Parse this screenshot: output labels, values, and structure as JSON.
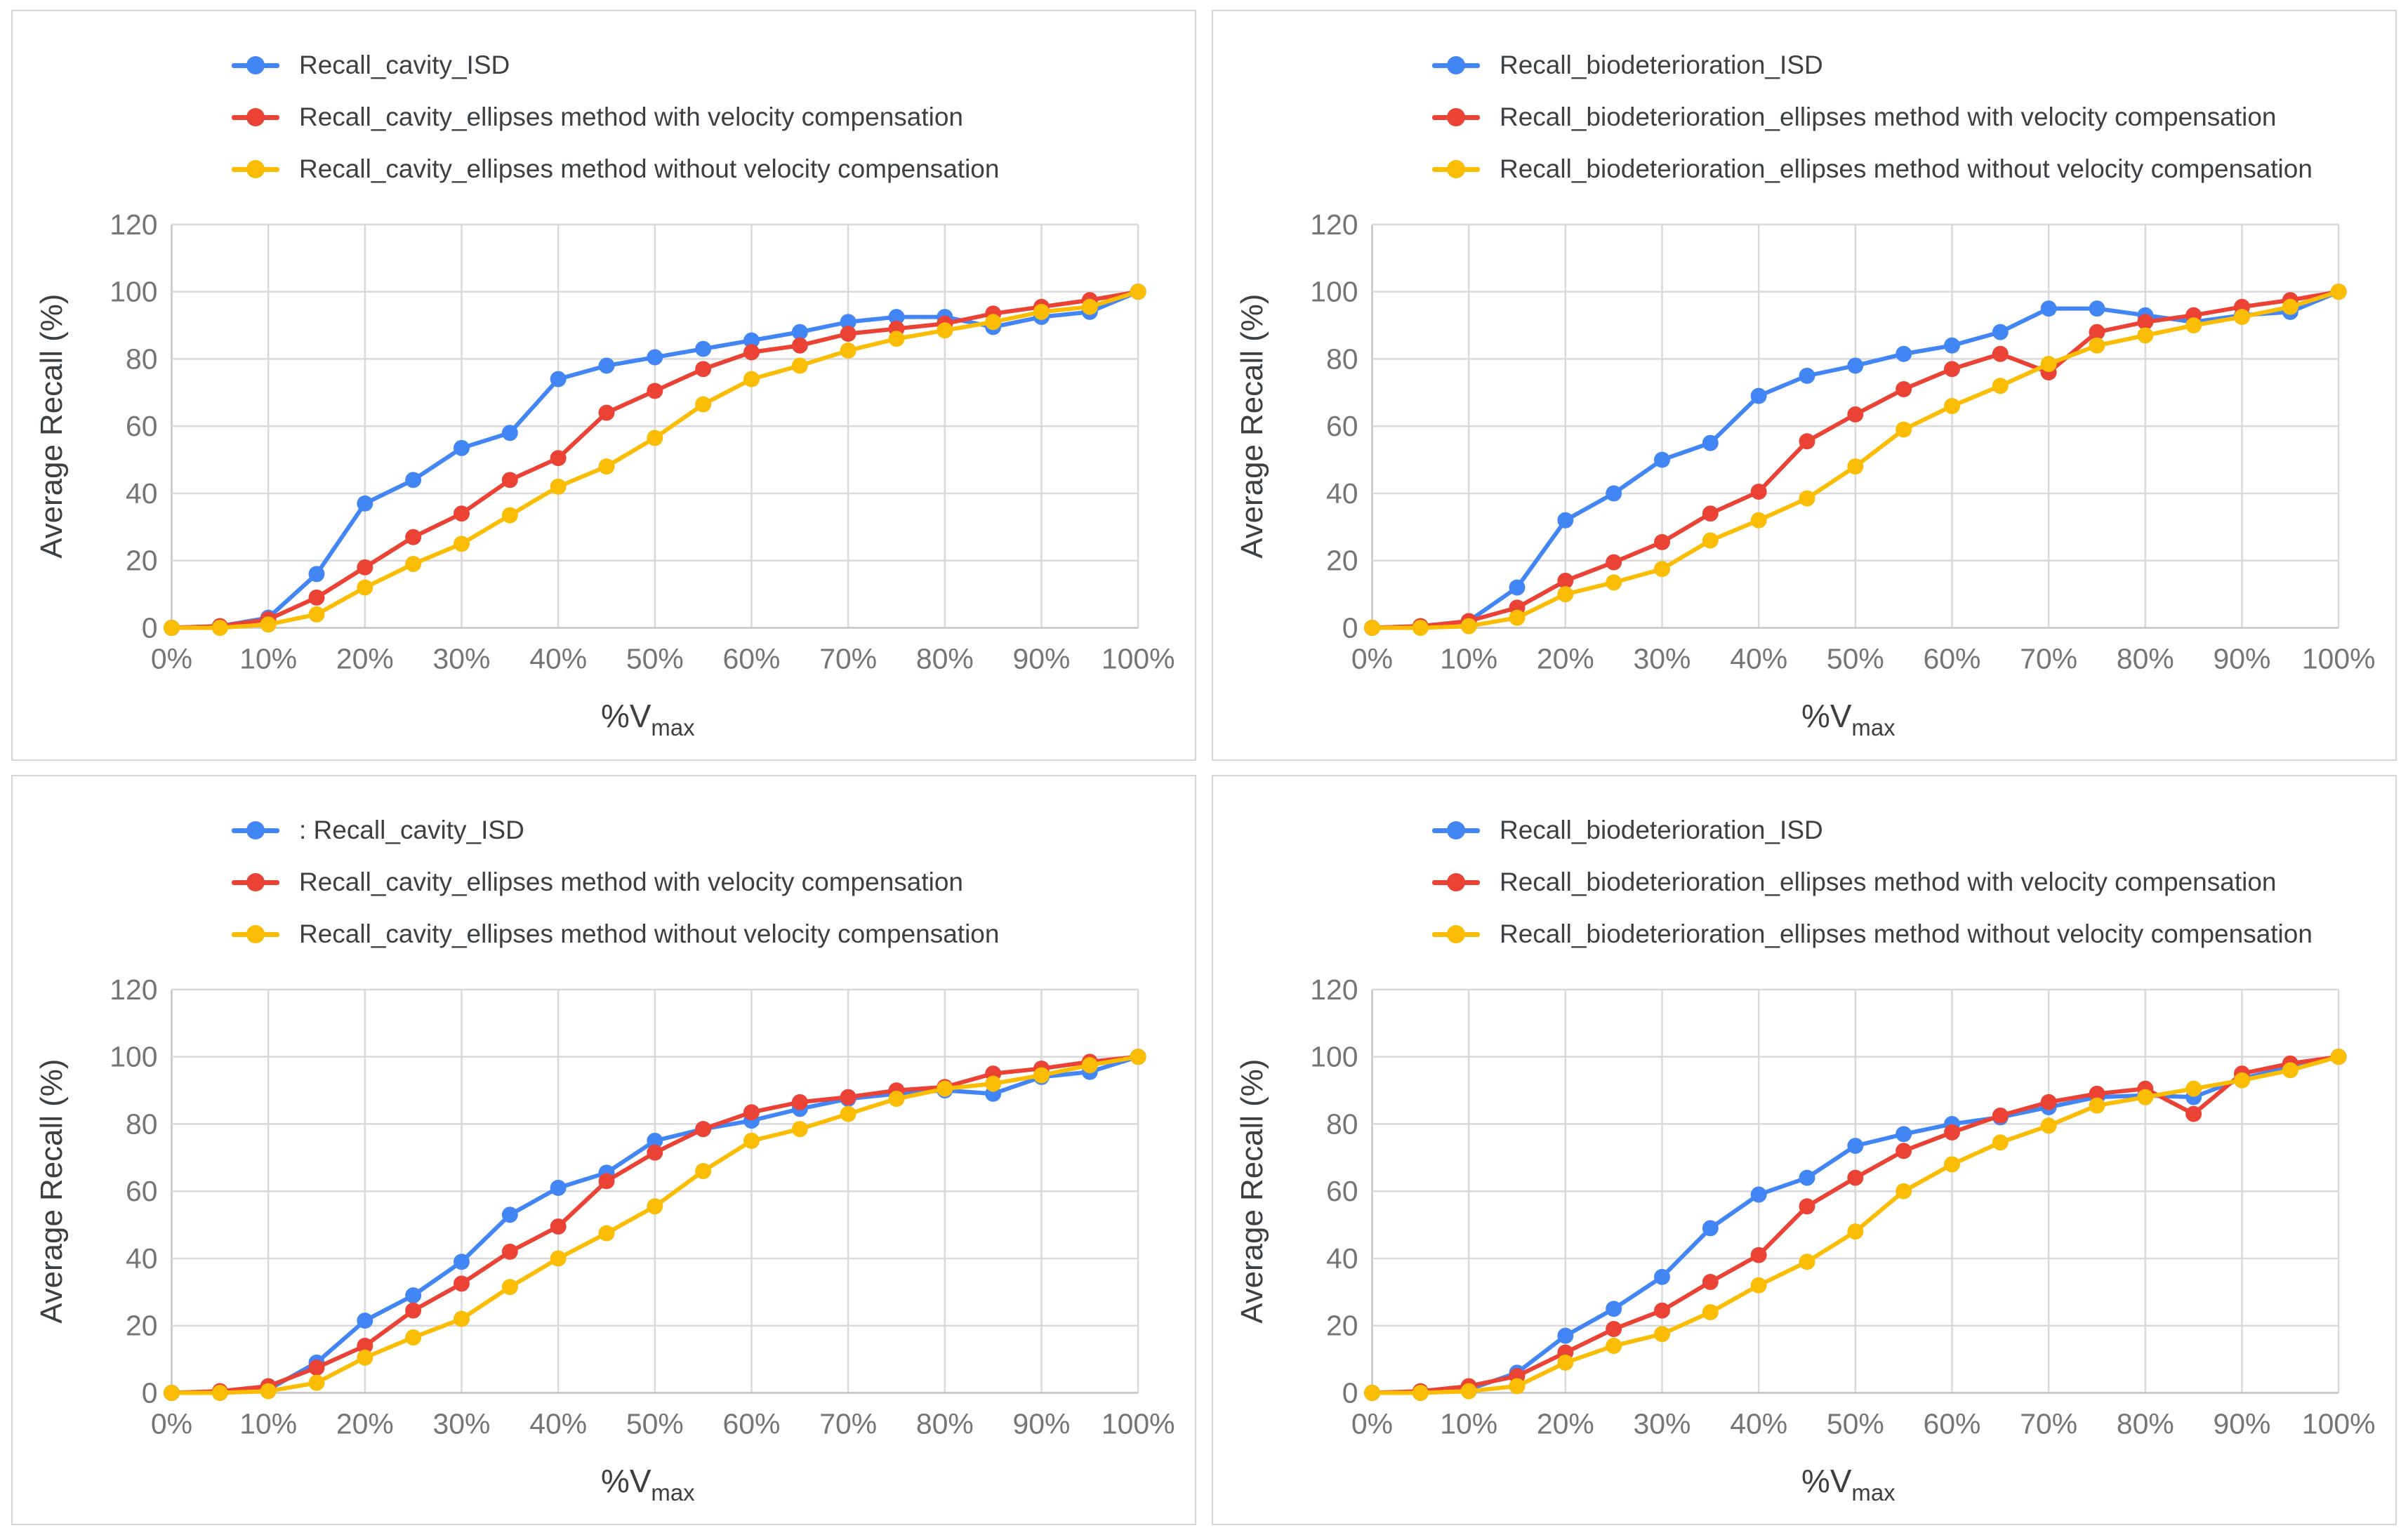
{
  "page": {
    "background": "#ffffff",
    "panel_border": "#d6d6d6"
  },
  "chart_data": [
    {
      "type": "line",
      "panel": "top-left",
      "ylabel": "Average Recall (%)",
      "xlabel": "%V",
      "xlabel_sub": "max",
      "ylim": [
        0,
        120
      ],
      "yticks": [
        0,
        20,
        40,
        60,
        80,
        100,
        120
      ],
      "x_tick_labels": [
        "0%",
        "10%",
        "20%",
        "30%",
        "40%",
        "50%",
        "60%",
        "70%",
        "80%",
        "90%",
        "100%"
      ],
      "x_categories": [
        "0%",
        "5%",
        "10%",
        "15%",
        "20%",
        "25%",
        "30%",
        "35%",
        "40%",
        "45%",
        "50%",
        "55%",
        "60%",
        "65%",
        "70%",
        "75%",
        "80%",
        "85%",
        "90%",
        "95%",
        "100%"
      ],
      "grid": true,
      "legend_position": "top-left",
      "series": [
        {
          "name": "Recall_cavity_ISD",
          "color": "#4285F4",
          "values": [
            0,
            0.5,
            3,
            16,
            37,
            44,
            53.5,
            58,
            74,
            78,
            80.5,
            83,
            85.5,
            88,
            91,
            92.5,
            92.5,
            89.5,
            92.5,
            94,
            100
          ]
        },
        {
          "name": "Recall_cavity_ellipses method with velocity compensation",
          "color": "#EA4335",
          "values": [
            0,
            0.5,
            2.5,
            9,
            18,
            27,
            34,
            44,
            50.5,
            64,
            70.5,
            77,
            82,
            84,
            87.5,
            89,
            90.5,
            93.5,
            95.5,
            97.5,
            100
          ]
        },
        {
          "name": "Recall_cavity_ellipses method without velocity compensation",
          "color": "#FBBC04",
          "values": [
            0,
            0,
            1,
            4,
            12,
            19,
            25,
            33.5,
            42,
            48,
            56.5,
            66.5,
            74,
            78,
            82.5,
            86,
            88.5,
            91,
            94,
            95.5,
            100
          ]
        }
      ]
    },
    {
      "type": "line",
      "panel": "top-right",
      "ylabel": "Average Recall (%)",
      "xlabel": "%V",
      "xlabel_sub": "max",
      "ylim": [
        0,
        120
      ],
      "yticks": [
        0,
        20,
        40,
        60,
        80,
        100,
        120
      ],
      "x_tick_labels": [
        "0%",
        "10%",
        "20%",
        "30%",
        "40%",
        "50%",
        "60%",
        "70%",
        "80%",
        "90%",
        "100%"
      ],
      "x_categories": [
        "0%",
        "5%",
        "10%",
        "15%",
        "20%",
        "25%",
        "30%",
        "35%",
        "40%",
        "45%",
        "50%",
        "55%",
        "60%",
        "65%",
        "70%",
        "75%",
        "80%",
        "85%",
        "90%",
        "95%",
        "100%"
      ],
      "grid": true,
      "legend_position": "top-left",
      "series": [
        {
          "name": "Recall_biodeterioration_ISD",
          "color": "#4285F4",
          "values": [
            0,
            0.5,
            2,
            12,
            32,
            40,
            50,
            55,
            69,
            75,
            78,
            81.5,
            84,
            88,
            95,
            95,
            93,
            91,
            93,
            94,
            100
          ]
        },
        {
          "name": "Recall_biodeterioration_ellipses method with velocity compensation",
          "color": "#EA4335",
          "values": [
            0,
            0.5,
            2,
            6,
            14,
            19.5,
            25.5,
            34,
            40.5,
            55.5,
            63.5,
            71,
            77,
            81.5,
            76,
            88,
            91,
            93,
            95.5,
            97.5,
            100
          ]
        },
        {
          "name": "Recall_biodeterioration_ellipses method without velocity compensation",
          "color": "#FBBC04",
          "values": [
            0,
            0,
            0.5,
            3,
            10,
            13.5,
            17.5,
            26,
            32,
            38.5,
            48,
            59,
            66,
            72,
            78.5,
            84,
            87,
            90,
            92.5,
            95.5,
            100
          ]
        }
      ]
    },
    {
      "type": "line",
      "panel": "bottom-left",
      "ylabel": "Average Recall (%)",
      "xlabel": "%V",
      "xlabel_sub": "max",
      "ylim": [
        0,
        120
      ],
      "yticks": [
        0,
        20,
        40,
        60,
        80,
        100,
        120
      ],
      "x_tick_labels": [
        "0%",
        "10%",
        "20%",
        "30%",
        "40%",
        "50%",
        "60%",
        "70%",
        "80%",
        "90%",
        "100%"
      ],
      "x_categories": [
        "0%",
        "5%",
        "10%",
        "15%",
        "20%",
        "25%",
        "30%",
        "35%",
        "40%",
        "45%",
        "50%",
        "55%",
        "60%",
        "65%",
        "70%",
        "75%",
        "80%",
        "85%",
        "90%",
        "95%",
        "100%"
      ],
      "grid": true,
      "legend_position": "top-left",
      "series": [
        {
          "name": ": Recall_cavity_ISD",
          "color": "#4285F4",
          "values": [
            0,
            0,
            1,
            9,
            21.5,
            29,
            39,
            53,
            61,
            65.5,
            75,
            78.5,
            81,
            84.5,
            87.5,
            89,
            90,
            89,
            94,
            95.5,
            100
          ]
        },
        {
          "name": "Recall_cavity_ellipses method with velocity compensation",
          "color": "#EA4335",
          "values": [
            0,
            0.5,
            2,
            7.5,
            14,
            24.5,
            32.5,
            42,
            49.5,
            63,
            71.5,
            78.5,
            83.5,
            86.5,
            88,
            90,
            91,
            95,
            96.5,
            98.5,
            100
          ]
        },
        {
          "name": "Recall_cavity_ellipses method without velocity compensation",
          "color": "#FBBC04",
          "values": [
            0,
            0,
            0.5,
            3,
            10.5,
            16.5,
            22,
            31.5,
            40,
            47.5,
            55.5,
            66,
            75,
            78.5,
            83,
            87.5,
            90.5,
            92,
            94.5,
            97.5,
            100
          ]
        }
      ]
    },
    {
      "type": "line",
      "panel": "bottom-right",
      "ylabel": "Average Recall (%)",
      "xlabel": "%V",
      "xlabel_sub": "max",
      "ylim": [
        0,
        120
      ],
      "yticks": [
        0,
        20,
        40,
        60,
        80,
        100,
        120
      ],
      "x_tick_labels": [
        "0%",
        "10%",
        "20%",
        "30%",
        "40%",
        "50%",
        "60%",
        "70%",
        "80%",
        "90%",
        "100%"
      ],
      "x_categories": [
        "0%",
        "5%",
        "10%",
        "15%",
        "20%",
        "25%",
        "30%",
        "35%",
        "40%",
        "45%",
        "50%",
        "55%",
        "60%",
        "65%",
        "70%",
        "75%",
        "80%",
        "85%",
        "90%",
        "95%",
        "100%"
      ],
      "grid": true,
      "legend_position": "top-left",
      "series": [
        {
          "name": "Recall_biodeterioration_ISD",
          "color": "#4285F4",
          "values": [
            0,
            0,
            1,
            6,
            17,
            25,
            34.5,
            49,
            59,
            64,
            73.5,
            77,
            80,
            82,
            85,
            88,
            88.5,
            88,
            93.5,
            97,
            100
          ]
        },
        {
          "name": "Recall_biodeterioration_ellipses method with velocity compensation",
          "color": "#EA4335",
          "values": [
            0,
            0.5,
            2,
            5,
            12,
            19,
            24.5,
            33,
            41,
            55.5,
            64,
            72,
            77.5,
            82.5,
            86.5,
            89,
            90.5,
            83,
            95,
            98,
            100
          ]
        },
        {
          "name": "Recall_biodeterioration_ellipses method without velocity compensation",
          "color": "#FBBC04",
          "values": [
            0,
            0,
            0.5,
            2,
            9,
            14,
            17.5,
            24,
            32,
            39,
            48,
            60,
            68,
            74.5,
            79.5,
            85.5,
            88,
            90.5,
            93,
            96,
            100
          ]
        }
      ]
    }
  ],
  "style": {
    "grid_color": "#d9d9d9",
    "axis_color": "#c4c4c4",
    "tick_label_color": "#757575",
    "axis_title_color": "#3c4043"
  }
}
